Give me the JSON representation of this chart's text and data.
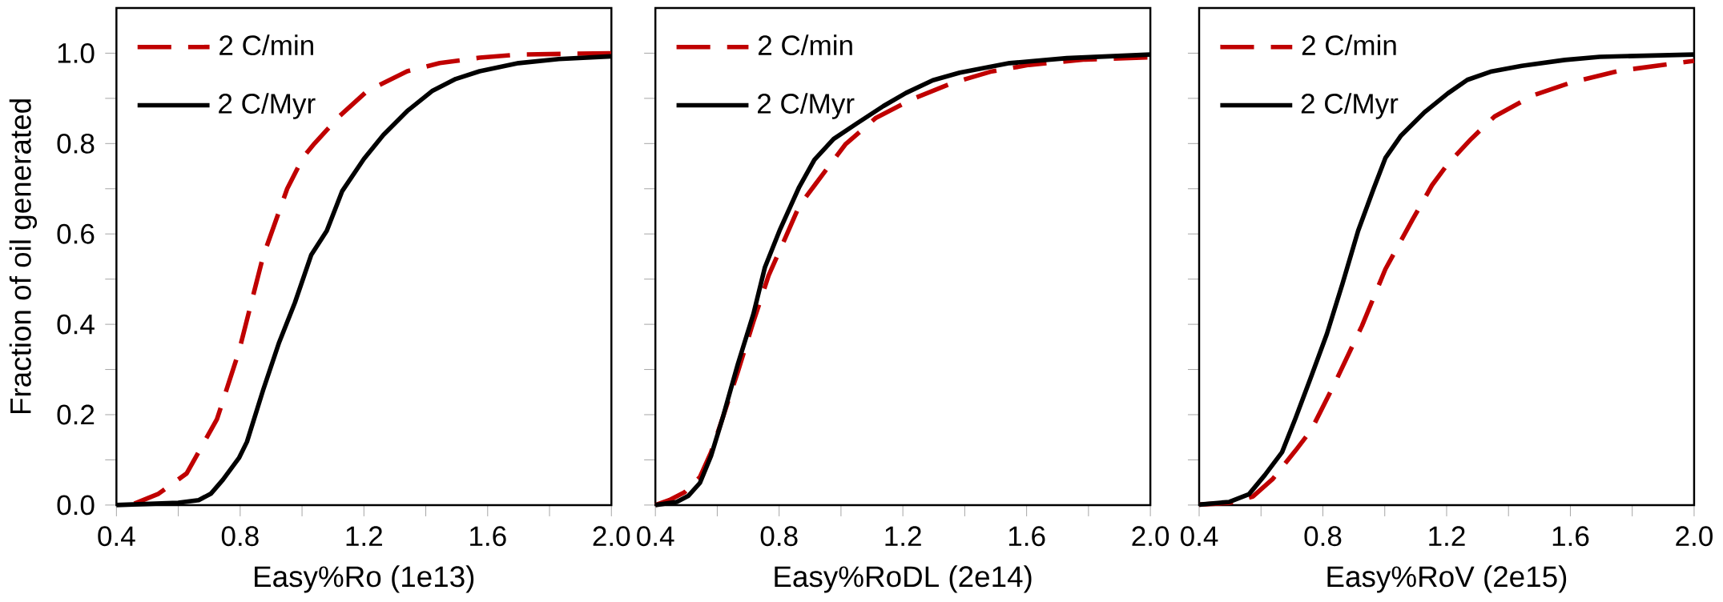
{
  "chart_data": [
    {
      "type": "line",
      "xlabel": "Easy%Ro (1e13)",
      "ylabel": "Fraction of oil generated",
      "xlim": [
        0.4,
        2.0
      ],
      "ylim": [
        0,
        1.1
      ],
      "xticks": [
        0.4,
        {
          "value": 0.6,
          "label": null
        },
        0.8,
        {
          "value": 1.0,
          "label": null
        },
        1.2,
        {
          "value": 1.4,
          "label": null
        },
        1.6,
        {
          "value": 1.8,
          "label": null
        },
        {
          "value": 2.0,
          "label": "2.0"
        }
      ],
      "yticks": [
        {
          "value": 0,
          "label": "0.0"
        },
        {
          "value": 0.1,
          "label": null
        },
        0.2,
        {
          "value": 0.3,
          "label": null
        },
        0.4,
        {
          "value": 0.5,
          "label": null
        },
        0.6,
        {
          "value": 0.7,
          "label": null
        },
        0.8,
        {
          "value": 0.9,
          "label": null
        },
        {
          "value": 1.0,
          "label": "1.0"
        }
      ],
      "legend": "top left",
      "series": [
        {
          "name": "2 C/min",
          "color": "#c00000",
          "line_style": "dashed",
          "x": [
            0.458,
            0.536,
            0.627,
            0.725,
            0.796,
            0.874,
            0.952,
            1.004,
            1.04,
            1.12,
            1.21,
            1.34,
            1.445,
            1.574,
            1.7,
            2.0
          ],
          "values": [
            0.003,
            0.025,
            0.07,
            0.19,
            0.34,
            0.55,
            0.7,
            0.77,
            0.8,
            0.86,
            0.916,
            0.96,
            0.978,
            0.99,
            0.997,
            1.0
          ]
        },
        {
          "name": "2 C/Myr",
          "color": "#000000",
          "line_style": "solid",
          "x": [
            0.4,
            0.6,
            0.666,
            0.705,
            0.744,
            0.796,
            0.822,
            0.874,
            0.926,
            0.977,
            1.03,
            1.08,
            1.13,
            1.2,
            1.263,
            1.34,
            1.42,
            1.497,
            1.574,
            1.7,
            1.83,
            2.0
          ],
          "values": [
            0,
            0.005,
            0.011,
            0.025,
            0.056,
            0.104,
            0.14,
            0.254,
            0.36,
            0.448,
            0.554,
            0.607,
            0.695,
            0.766,
            0.819,
            0.872,
            0.916,
            0.943,
            0.96,
            0.978,
            0.987,
            0.993
          ]
        }
      ]
    },
    {
      "type": "line",
      "xlabel": "Easy%RoDL (2e14)",
      "xlim": [
        0.4,
        2.0
      ],
      "ylim": [
        0,
        1.1
      ],
      "tick_labels": "x",
      "xticks": [
        0.4,
        {
          "value": 0.6,
          "label": null
        },
        0.8,
        {
          "value": 1.0,
          "label": null
        },
        1.2,
        {
          "value": 1.4,
          "label": null
        },
        1.6,
        {
          "value": 1.8,
          "label": null
        },
        {
          "value": 2.0,
          "label": "2.0"
        }
      ],
      "yticks": [
        0,
        0.1,
        0.2,
        0.3,
        0.4,
        0.5,
        0.6,
        0.7,
        0.8,
        0.9,
        1.0
      ],
      "legend": "top left",
      "series": [
        {
          "name": "2 C/min",
          "color": "#c00000",
          "line_style": "dashed",
          "x": [
            0.4,
            0.445,
            0.494,
            0.544,
            0.58,
            0.618,
            0.667,
            0.717,
            0.766,
            0.816,
            0.865,
            0.939,
            1.014,
            1.113,
            1.236,
            1.36,
            1.483,
            1.607,
            1.79,
            2.0
          ],
          "values": [
            0,
            0.011,
            0.028,
            0.062,
            0.117,
            0.194,
            0.296,
            0.406,
            0.508,
            0.585,
            0.662,
            0.73,
            0.798,
            0.857,
            0.9,
            0.934,
            0.959,
            0.974,
            0.986,
            0.991
          ]
        },
        {
          "name": "2 C/Myr",
          "color": "#000000",
          "line_style": "solid",
          "x": [
            0.4,
            0.469,
            0.506,
            0.544,
            0.58,
            0.618,
            0.667,
            0.717,
            0.754,
            0.803,
            0.865,
            0.914,
            0.976,
            1.05,
            1.137,
            1.21,
            1.297,
            1.384,
            1.545,
            1.73,
            2.0
          ],
          "values": [
            0,
            0.007,
            0.02,
            0.049,
            0.109,
            0.194,
            0.313,
            0.423,
            0.526,
            0.61,
            0.704,
            0.764,
            0.81,
            0.844,
            0.883,
            0.912,
            0.94,
            0.957,
            0.978,
            0.989,
            0.997
          ]
        }
      ]
    },
    {
      "type": "line",
      "xlabel": "Easy%RoV (2e15)",
      "xlim": [
        0.4,
        2.0
      ],
      "ylim": [
        0,
        1.1
      ],
      "tick_labels": "x",
      "xticks": [
        0.4,
        {
          "value": 0.6,
          "label": null
        },
        0.8,
        {
          "value": 1.0,
          "label": null
        },
        1.2,
        {
          "value": 1.4,
          "label": null
        },
        1.6,
        {
          "value": 1.8,
          "label": null
        },
        {
          "value": 2.0,
          "label": "2.0"
        }
      ],
      "yticks": [
        0,
        0.1,
        0.2,
        0.3,
        0.4,
        0.5,
        0.6,
        0.7,
        0.8,
        0.9,
        1.0
      ],
      "legend": "top left",
      "series": [
        {
          "name": "2 C/min",
          "color": "#c00000",
          "line_style": "dashed",
          "x": [
            0.4,
            0.498,
            0.574,
            0.637,
            0.712,
            0.763,
            0.838,
            0.926,
            1.002,
            1.09,
            1.153,
            1.204,
            1.279,
            1.355,
            1.481,
            1.607,
            1.758,
            2.0
          ],
          "values": [
            0.001,
            0.005,
            0.019,
            0.057,
            0.121,
            0.167,
            0.269,
            0.396,
            0.522,
            0.632,
            0.708,
            0.755,
            0.81,
            0.86,
            0.907,
            0.936,
            0.961,
            0.983
          ]
        },
        {
          "name": "2 C/Myr",
          "color": "#000000",
          "line_style": "solid",
          "x": [
            0.4,
            0.498,
            0.561,
            0.612,
            0.668,
            0.712,
            0.763,
            0.813,
            0.863,
            0.914,
            0.964,
            1.002,
            1.053,
            1.128,
            1.204,
            1.267,
            1.342,
            1.443,
            1.582,
            1.695,
            2.0
          ],
          "values": [
            0.001,
            0.007,
            0.024,
            0.066,
            0.117,
            0.193,
            0.286,
            0.379,
            0.489,
            0.607,
            0.7,
            0.768,
            0.818,
            0.869,
            0.911,
            0.941,
            0.959,
            0.972,
            0.985,
            0.992,
            0.997
          ]
        }
      ]
    }
  ]
}
